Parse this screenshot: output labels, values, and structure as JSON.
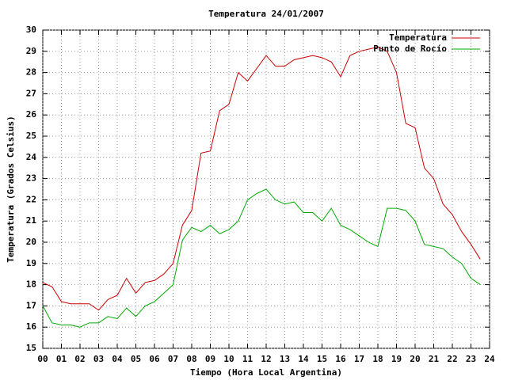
{
  "chart_data": {
    "type": "line",
    "title": "Temperatura 24/01/2007",
    "x_label": "Tiempo (Hora Local Argentina)",
    "y_label": "Temperatura (Grados Celsius)",
    "x": [
      0,
      0.5,
      1,
      1.5,
      2,
      2.5,
      3,
      3.5,
      4,
      4.5,
      5,
      5.5,
      6,
      6.5,
      7,
      7.5,
      8,
      8.5,
      9,
      9.5,
      10,
      10.5,
      11,
      11.5,
      12,
      12.5,
      13,
      13.5,
      14,
      14.5,
      15,
      15.5,
      16,
      16.5,
      17,
      17.5,
      18,
      18.5,
      19,
      19.5,
      20,
      20.5,
      21,
      21.5,
      22,
      22.5,
      23,
      23.5
    ],
    "series": [
      {
        "name": "Temperatura",
        "color": "#cc0000",
        "values": [
          18.1,
          17.9,
          17.2,
          17.1,
          17.1,
          17.1,
          16.8,
          17.3,
          17.5,
          18.3,
          17.6,
          18.1,
          18.2,
          18.5,
          19.0,
          20.8,
          21.5,
          24.2,
          24.3,
          26.2,
          26.5,
          28.0,
          27.6,
          28.2,
          28.8,
          28.3,
          28.3,
          28.6,
          28.7,
          28.8,
          28.7,
          28.5,
          27.8,
          28.8,
          29.0,
          29.1,
          29.2,
          29.0,
          28.0,
          25.6,
          25.4,
          23.5,
          23.0,
          21.8,
          21.3,
          20.5,
          19.9,
          19.2
        ]
      },
      {
        "name": "Punto de Rocío",
        "color": "#00aa00",
        "values": [
          17.0,
          16.2,
          16.1,
          16.1,
          16.0,
          16.2,
          16.2,
          16.5,
          16.4,
          16.9,
          16.5,
          17.0,
          17.2,
          17.6,
          18.0,
          20.1,
          20.7,
          20.5,
          20.8,
          20.4,
          20.6,
          21.0,
          22.0,
          22.3,
          22.5,
          22.0,
          21.8,
          21.9,
          21.4,
          21.4,
          21.0,
          21.6,
          20.8,
          20.6,
          20.3,
          20.0,
          19.8,
          21.6,
          21.6,
          21.5,
          21.0,
          19.9,
          19.8,
          19.7,
          19.3,
          19.0,
          18.3,
          18.0
        ]
      }
    ],
    "xlim": [
      0,
      24
    ],
    "xticks": [
      {
        "value": 0,
        "label": "00"
      },
      {
        "value": 1,
        "label": "01"
      },
      {
        "value": 2,
        "label": "02"
      },
      {
        "value": 3,
        "label": "03"
      },
      {
        "value": 4,
        "label": "04"
      },
      {
        "value": 5,
        "label": "05"
      },
      {
        "value": 6,
        "label": "06"
      },
      {
        "value": 7,
        "label": "07"
      },
      {
        "value": 8,
        "label": "08"
      },
      {
        "value": 9,
        "label": "09"
      },
      10,
      11,
      12,
      13,
      14,
      15,
      16,
      17,
      18,
      19,
      20,
      21,
      22,
      23,
      24
    ],
    "ylim": [
      15,
      30
    ],
    "yticks": [
      15,
      16,
      17,
      18,
      19,
      20,
      21,
      22,
      23,
      24,
      25,
      26,
      27,
      28,
      29,
      30
    ],
    "grid": true,
    "legend": "top-right"
  }
}
